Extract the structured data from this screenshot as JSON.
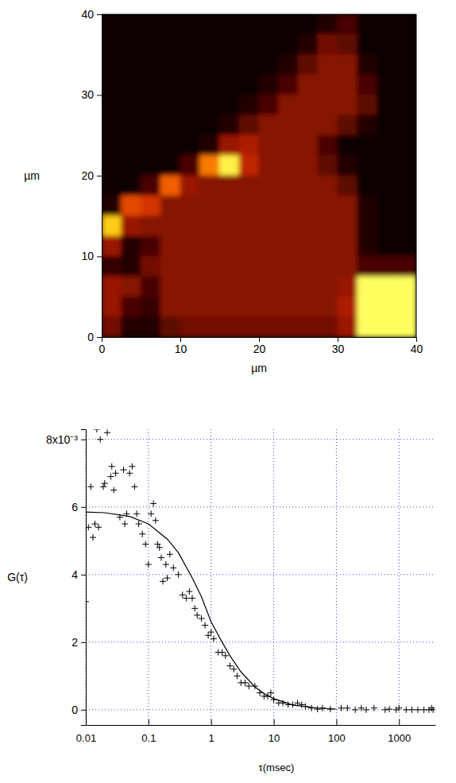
{
  "chart_data": [
    {
      "type": "heatmap",
      "xlabel": "µm",
      "ylabel": "µm",
      "xlim": [
        0,
        40
      ],
      "ylim": [
        0,
        40
      ],
      "xticks": [
        0,
        10,
        20,
        30,
        40
      ],
      "yticks": [
        0,
        10,
        20,
        30,
        40
      ],
      "grid": false,
      "x": [
        1.25,
        3.75,
        6.25,
        8.75,
        11.25,
        13.75,
        16.25,
        18.75,
        21.25,
        23.75,
        26.25,
        28.75,
        31.25,
        33.75,
        36.25,
        38.75
      ],
      "y": [
        38.75,
        36.25,
        33.75,
        31.25,
        28.75,
        26.25,
        23.75,
        21.25,
        18.75,
        16.25,
        13.75,
        11.25,
        8.75,
        6.25,
        3.75,
        1.25
      ],
      "zlim": [
        0,
        100
      ],
      "z": [
        [
          5,
          5,
          5,
          5,
          5,
          5,
          5,
          5,
          5,
          5,
          5,
          10,
          20,
          5,
          5,
          5
        ],
        [
          5,
          5,
          5,
          5,
          5,
          5,
          5,
          5,
          5,
          5,
          10,
          30,
          25,
          5,
          5,
          5
        ],
        [
          5,
          5,
          5,
          5,
          5,
          5,
          5,
          5,
          5,
          10,
          25,
          35,
          35,
          10,
          5,
          5
        ],
        [
          5,
          5,
          5,
          5,
          5,
          5,
          5,
          5,
          10,
          20,
          35,
          35,
          35,
          20,
          5,
          5
        ],
        [
          5,
          5,
          5,
          5,
          5,
          5,
          5,
          10,
          20,
          35,
          35,
          35,
          35,
          25,
          5,
          5
        ],
        [
          5,
          5,
          5,
          5,
          5,
          5,
          10,
          25,
          35,
          35,
          35,
          35,
          25,
          10,
          5,
          5
        ],
        [
          5,
          5,
          5,
          5,
          5,
          10,
          40,
          45,
          35,
          35,
          35,
          20,
          5,
          5,
          5,
          5
        ],
        [
          5,
          5,
          5,
          5,
          20,
          70,
          95,
          50,
          35,
          35,
          35,
          25,
          10,
          5,
          5,
          5
        ],
        [
          5,
          5,
          20,
          65,
          40,
          35,
          35,
          35,
          35,
          35,
          35,
          35,
          25,
          5,
          5,
          5
        ],
        [
          10,
          60,
          55,
          35,
          35,
          35,
          35,
          35,
          35,
          35,
          35,
          35,
          35,
          10,
          5,
          5
        ],
        [
          85,
          40,
          35,
          35,
          35,
          35,
          35,
          35,
          35,
          35,
          35,
          35,
          35,
          10,
          5,
          5
        ],
        [
          40,
          10,
          20,
          35,
          35,
          35,
          35,
          35,
          35,
          35,
          35,
          35,
          35,
          10,
          5,
          5
        ],
        [
          15,
          10,
          30,
          35,
          35,
          35,
          35,
          35,
          35,
          35,
          35,
          35,
          35,
          20,
          20,
          20
        ],
        [
          40,
          35,
          20,
          35,
          35,
          35,
          35,
          35,
          35,
          35,
          35,
          35,
          40,
          100,
          100,
          100
        ],
        [
          40,
          20,
          15,
          35,
          35,
          35,
          35,
          35,
          35,
          35,
          35,
          35,
          45,
          100,
          100,
          100
        ],
        [
          30,
          10,
          10,
          25,
          30,
          30,
          30,
          30,
          30,
          30,
          30,
          30,
          40,
          100,
          100,
          100
        ]
      ]
    },
    {
      "type": "scatter",
      "xlabel": "τ(msec)",
      "ylabel": "G(τ)",
      "log": "x",
      "grid": true,
      "xlim": [
        0.01,
        3800
      ],
      "ylim": [
        -0.00045,
        0.0083
      ],
      "xticks": [
        0.01,
        0.1,
        1,
        10,
        100,
        1000
      ],
      "yticks": [
        0,
        {
          "value": 0.002,
          "label": "2"
        },
        {
          "value": 0.004,
          "label": "4"
        },
        {
          "value": 0.006,
          "label": "6"
        },
        {
          "value": 0.008,
          "label": "8x10⁻³"
        }
      ],
      "series": [
        {
          "type": "scatter",
          "marker": "plus",
          "color": "#000000",
          "x": [
            0.01,
            0.011,
            0.012,
            0.013,
            0.014,
            0.015,
            0.016,
            0.017,
            0.019,
            0.02,
            0.022,
            0.025,
            0.026,
            0.028,
            0.03,
            0.035,
            0.04,
            0.042,
            0.045,
            0.05,
            0.055,
            0.06,
            0.065,
            0.07,
            0.08,
            0.09,
            0.1,
            0.11,
            0.12,
            0.13,
            0.14,
            0.15,
            0.16,
            0.17,
            0.19,
            0.2,
            0.22,
            0.25,
            0.3,
            0.35,
            0.4,
            0.45,
            0.5,
            0.55,
            0.6,
            0.7,
            0.8,
            0.9,
            1,
            1.1,
            1.3,
            1.5,
            1.7,
            2,
            2.3,
            2.6,
            3,
            3.5,
            4,
            5,
            6,
            7,
            8,
            9,
            10,
            12,
            14,
            17,
            20,
            24,
            28,
            32,
            40,
            50,
            60,
            80,
            120,
            150,
            200,
            250,
            300,
            400,
            600,
            700,
            900,
            1000,
            1300,
            1600,
            2000,
            2500,
            3000,
            3300,
            3500
          ],
          "values": [
            0.0032,
            0.0054,
            0.0066,
            0.0051,
            0.0055,
            0.0083,
            0.0054,
            0.008,
            0.0066,
            0.0067,
            0.0082,
            0.0069,
            0.0072,
            0.0065,
            0.007,
            0.0057,
            0.0071,
            0.0055,
            0.0058,
            0.007,
            0.0072,
            0.0066,
            0.0058,
            0.0055,
            0.0052,
            0.0049,
            0.0043,
            0.0058,
            0.0061,
            0.0056,
            0.0049,
            0.0048,
            0.0045,
            0.0038,
            0.0043,
            0.0039,
            0.0046,
            0.0042,
            0.004,
            0.0034,
            0.0033,
            0.0035,
            0.0033,
            0.003,
            0.0028,
            0.0027,
            0.0025,
            0.0022,
            0.0023,
            0.0021,
            0.0017,
            0.0017,
            0.0016,
            0.0013,
            0.0012,
            0.001,
            0.0008,
            0.0008,
            0.0007,
            0.0007,
            0.0005,
            0.0004,
            0.0004,
            0.0005,
            0.0003,
            0.0002,
            0.0002,
            0.00015,
            0.00015,
            0.0002,
            0.00015,
            0.0001,
            5e-05,
            2e-05,
            5e-05,
            2e-05,
            5e-05,
            5e-05,
            0,
            5e-05,
            0,
            5e-05,
            0,
            2e-05,
            0,
            5e-05,
            0,
            0,
            0,
            0,
            0,
            5e-05,
            0
          ]
        },
        {
          "type": "line",
          "line_style": "solid",
          "color": "#000000",
          "x": [
            0.01,
            0.02,
            0.05,
            0.1,
            0.2,
            0.3,
            0.5,
            0.7,
            1,
            1.5,
            2,
            3,
            5,
            7,
            10,
            20,
            50,
            100
          ],
          "values": [
            0.00585,
            0.00583,
            0.00572,
            0.0055,
            0.00505,
            0.00465,
            0.0039,
            0.00335,
            0.0026,
            0.002,
            0.0016,
            0.00112,
            0.00068,
            0.00048,
            0.00033,
            0.00014,
            5e-05,
            2e-05
          ]
        }
      ]
    }
  ]
}
